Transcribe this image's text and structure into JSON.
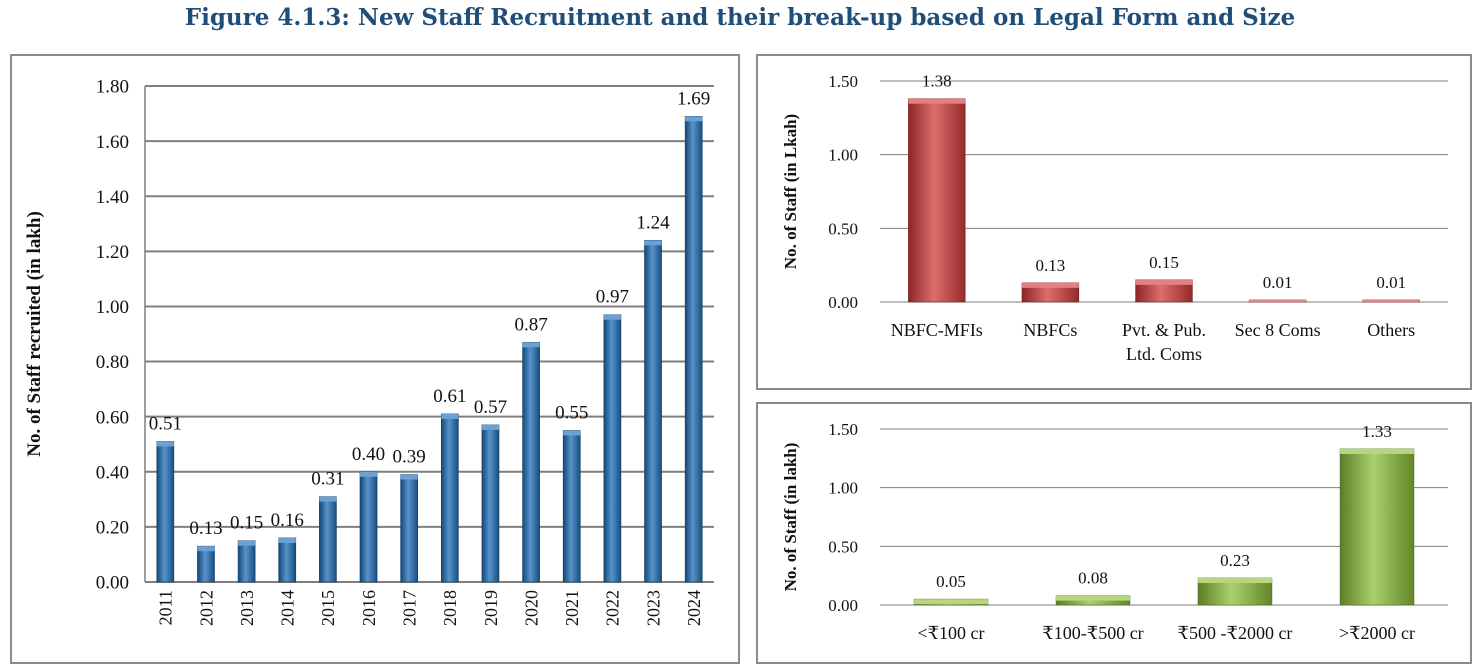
{
  "page": {
    "title": "Figure 4.1.3:  New Staff Recruitment and their break-up based on Legal Form and Size"
  },
  "colors": {
    "title": "#1f4e79",
    "blue_bar": "#1f6fb8",
    "red_bar": "#d43c3c",
    "green_bar": "#8ec03a",
    "grid": "#7f7f7f",
    "panel_border": "#8c8c8c"
  },
  "chart_data": [
    {
      "id": "yearly",
      "type": "bar",
      "title": "",
      "xlabel": "",
      "ylabel": "No. of Staff recruited (in lakh)",
      "categories": [
        "2011",
        "2012",
        "2013",
        "2014",
        "2015",
        "2016",
        "2017",
        "2018",
        "2019",
        "2020",
        "2021",
        "2022",
        "2023",
        "2024"
      ],
      "values": [
        0.51,
        0.13,
        0.15,
        0.16,
        0.31,
        0.4,
        0.39,
        0.61,
        0.57,
        0.87,
        0.55,
        0.97,
        1.24,
        1.69
      ],
      "data_labels": [
        "0.51",
        "0.13",
        "0.15",
        "0.16",
        "0.31",
        "0.40",
        "0.39",
        "0.61",
        "0.57",
        "0.87",
        "0.55",
        "0.97",
        "1.24",
        "1.69"
      ],
      "ylim": [
        0,
        1.8
      ],
      "yticks": [
        "0.00",
        "0.20",
        "0.40",
        "0.60",
        "0.80",
        "1.00",
        "1.20",
        "1.40",
        "1.60",
        "1.80"
      ],
      "grid": true,
      "color": "#1f6fb8"
    },
    {
      "id": "legal_form",
      "type": "bar",
      "title": "",
      "xlabel": "",
      "ylabel": "No. of Staff (in Lkah)",
      "categories": [
        [
          "NBFC-MFIs"
        ],
        [
          "NBFCs"
        ],
        [
          "Pvt. &  Pub.",
          "Ltd. Coms"
        ],
        [
          "Sec 8 Coms"
        ],
        [
          "Others"
        ]
      ],
      "values": [
        1.38,
        0.13,
        0.15,
        0.01,
        0.01
      ],
      "data_labels": [
        "1.38",
        "0.13",
        "0.15",
        "0.01",
        "0.01"
      ],
      "ylim": [
        0,
        1.5
      ],
      "yticks": [
        "0.00",
        "0.50",
        "1.00",
        "1.50"
      ],
      "grid": true,
      "color": "#d43c3c"
    },
    {
      "id": "size",
      "type": "bar",
      "title": "",
      "xlabel": "",
      "ylabel": "No. of Staff  (in lakh)",
      "categories": [
        [
          "<₹100 cr"
        ],
        [
          "₹100-₹500 cr"
        ],
        [
          "₹500 -₹2000 cr"
        ],
        [
          ">₹2000 cr"
        ]
      ],
      "values": [
        0.05,
        0.08,
        0.23,
        1.33
      ],
      "data_labels": [
        "0.05",
        "0.08",
        "0.23",
        "1.33"
      ],
      "ylim": [
        0,
        1.5
      ],
      "yticks": [
        "0.00",
        "0.50",
        "1.00",
        "1.50"
      ],
      "grid": true,
      "color": "#8ec03a"
    }
  ]
}
